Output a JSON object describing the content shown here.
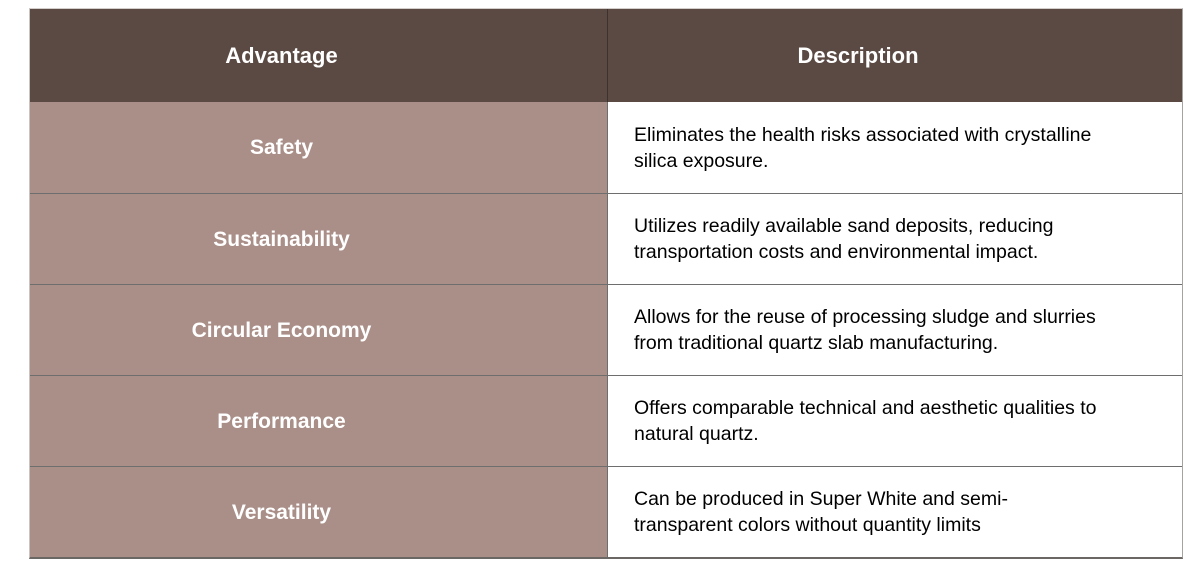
{
  "table": {
    "columns": [
      {
        "label": "Advantage"
      },
      {
        "label": "Description"
      }
    ],
    "rows": [
      {
        "advantage": "Safety",
        "description": "Eliminates the health risks associated with crystalline\nsilica exposure."
      },
      {
        "advantage": "Sustainability",
        "description": "Utilizes readily available sand deposits, reducing\ntransportation costs and environmental impact."
      },
      {
        "advantage": "Circular Economy",
        "description": "Allows for the reuse of processing sludge and slurries\nfrom traditional quartz slab manufacturing."
      },
      {
        "advantage": "Performance",
        "description": "Offers comparable technical and aesthetic qualities to\nnatural quartz."
      },
      {
        "advantage": "Versatility",
        "description": "Can be produced in Super White and semi-\ntransparent colors without quantity limits"
      }
    ],
    "colors": {
      "header_bg": "#5b4a43",
      "header_text": "#ffffff",
      "advantage_bg": "#aa8e88",
      "advantage_text": "#ffffff",
      "description_bg": "#ffffff",
      "description_text": "#000000",
      "divider": "#6e6e6e"
    }
  }
}
